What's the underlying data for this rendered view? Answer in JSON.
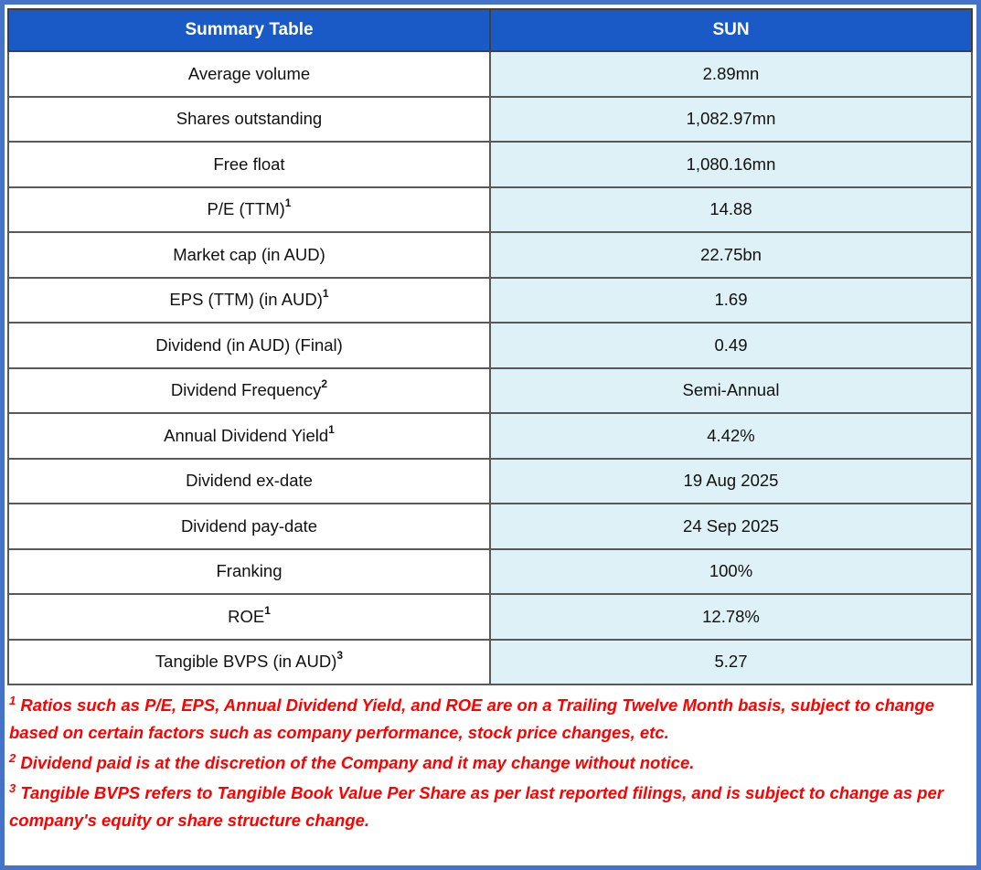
{
  "table": {
    "header": {
      "col1": "Summary Table",
      "col2": "SUN"
    },
    "rows": [
      {
        "label": "Average volume",
        "sup": "",
        "value": "2.89mn"
      },
      {
        "label": "Shares outstanding",
        "sup": "",
        "value": "1,082.97mn"
      },
      {
        "label": "Free float",
        "sup": "",
        "value": "1,080.16mn"
      },
      {
        "label": "P/E (TTM)",
        "sup": "1",
        "value": "14.88"
      },
      {
        "label": "Market cap (in AUD)",
        "sup": "",
        "value": "22.75bn"
      },
      {
        "label": "EPS (TTM) (in AUD)",
        "sup": "1",
        "value": "1.69"
      },
      {
        "label": "Dividend (in AUD) (Final)",
        "sup": "",
        "value": "0.49"
      },
      {
        "label": "Dividend Frequency",
        "sup": "2",
        "value": "Semi-Annual"
      },
      {
        "label": "Annual Dividend Yield",
        "sup": "1",
        "value": "4.42%"
      },
      {
        "label": "Dividend ex-date",
        "sup": "",
        "value": "19 Aug 2025"
      },
      {
        "label": "Dividend pay-date",
        "sup": "",
        "value": "24 Sep 2025"
      },
      {
        "label": "Franking",
        "sup": "",
        "value": "100%"
      },
      {
        "label": "ROE",
        "sup": "1",
        "value": "12.78%"
      },
      {
        "label": "Tangible BVPS (in AUD)",
        "sup": "3",
        "value": "5.27"
      }
    ]
  },
  "footnotes": [
    {
      "sup": "1",
      "text": "Ratios such as P/E, EPS, Annual Dividend Yield, and ROE are on a Trailing Twelve Month basis, subject to change based on certain factors such as company performance, stock price changes, etc."
    },
    {
      "sup": "2",
      "text": "Dividend paid is at the discretion of the Company and it may change without notice."
    },
    {
      "sup": "3",
      "text": "Tangible BVPS refers to Tangible Book Value Per Share as per last reported filings, and is subject to change as per company's equity or share structure change."
    }
  ],
  "colors": {
    "header_bg": "#1A5AC6",
    "value_cell_bg": "#DDF1F6",
    "grid_border": "#595959",
    "table_outline": "#3F3F3F",
    "page_border": "#4573C8",
    "footnote_red": "#FF0000",
    "text_dark": "#111111"
  }
}
